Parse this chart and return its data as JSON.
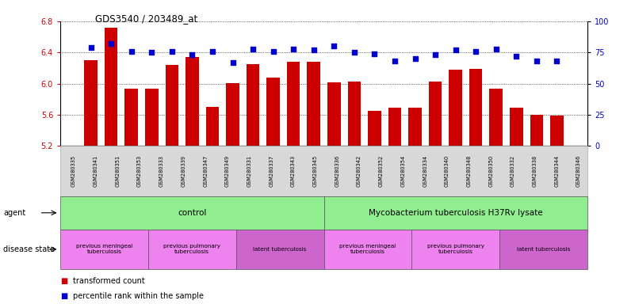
{
  "title": "GDS3540 / 203489_at",
  "samples": [
    "GSM280335",
    "GSM280341",
    "GSM280351",
    "GSM280353",
    "GSM280333",
    "GSM280339",
    "GSM280347",
    "GSM280349",
    "GSM280331",
    "GSM280337",
    "GSM280343",
    "GSM280345",
    "GSM280336",
    "GSM280342",
    "GSM280352",
    "GSM280354",
    "GSM280334",
    "GSM280340",
    "GSM280348",
    "GSM280350",
    "GSM280332",
    "GSM280338",
    "GSM280344",
    "GSM280346"
  ],
  "bar_values": [
    6.3,
    6.72,
    5.93,
    5.93,
    6.24,
    6.34,
    5.7,
    6.01,
    6.25,
    6.08,
    6.28,
    6.28,
    6.02,
    6.03,
    5.65,
    5.69,
    5.69,
    6.03,
    6.18,
    6.19,
    5.94,
    5.69,
    5.6,
    5.59
  ],
  "percentile_values": [
    79,
    82,
    76,
    75,
    76,
    73,
    76,
    67,
    78,
    76,
    78,
    77,
    80,
    75,
    74,
    68,
    70,
    73,
    77,
    76,
    78,
    72,
    68,
    68
  ],
  "ylim_left": [
    5.2,
    6.8
  ],
  "ylim_right": [
    0,
    100
  ],
  "yticks_left": [
    5.2,
    5.6,
    6.0,
    6.4,
    6.8
  ],
  "yticks_right": [
    0,
    25,
    50,
    75,
    100
  ],
  "bar_color": "#cc0000",
  "dot_color": "#0000cc",
  "agent_groups": [
    {
      "label": "control",
      "start": 0,
      "end": 11,
      "color": "#90ee90"
    },
    {
      "label": "Mycobacterium tuberculosis H37Rv lysate",
      "start": 12,
      "end": 23,
      "color": "#90ee90"
    }
  ],
  "disease_groups": [
    {
      "label": "previous meningeal\ntuberculosis",
      "start": 0,
      "end": 3,
      "color": "#ee82ee"
    },
    {
      "label": "previous pulmonary\ntuberculosis",
      "start": 4,
      "end": 7,
      "color": "#ee82ee"
    },
    {
      "label": "latent tuberculosis",
      "start": 8,
      "end": 11,
      "color": "#cc66cc"
    },
    {
      "label": "previous meningeal\ntuberculosis",
      "start": 12,
      "end": 15,
      "color": "#ee82ee"
    },
    {
      "label": "previous pulmonary\ntuberculosis",
      "start": 16,
      "end": 19,
      "color": "#ee82ee"
    },
    {
      "label": "latent tuberculosis",
      "start": 20,
      "end": 23,
      "color": "#cc66cc"
    }
  ],
  "legend_items": [
    {
      "label": "transformed count",
      "color": "#cc0000"
    },
    {
      "label": "percentile rank within the sample",
      "color": "#0000cc"
    }
  ]
}
